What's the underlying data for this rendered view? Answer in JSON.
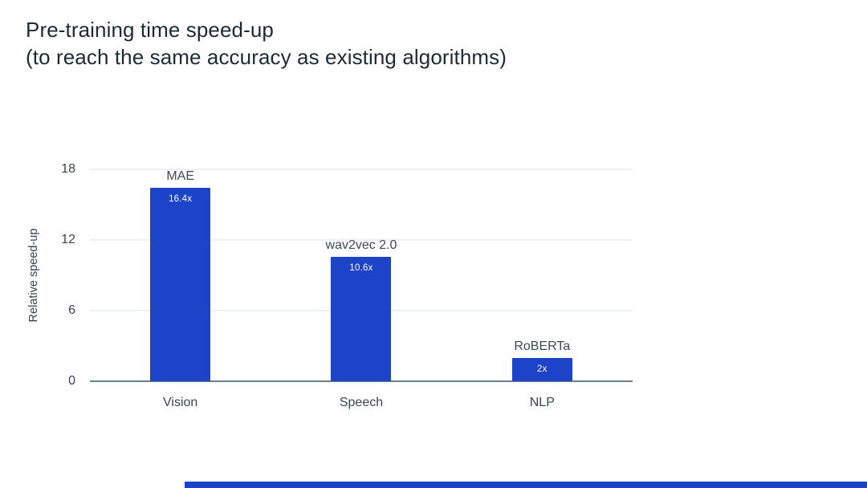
{
  "title": {
    "line1": "Pre-training time speed-up",
    "line2": "(to reach the same accuracy as existing algorithms)"
  },
  "colors": {
    "bar_blue": "#1c43c8",
    "title_text": "#1c2b33",
    "axis_text": "#37454f",
    "gridline": "#d9e1e6",
    "baseline": "#6f7f89"
  },
  "chart_data": {
    "type": "bar",
    "title": "Pre-training time speed-up (to reach the same accuracy as existing algorithms)",
    "categories": [
      "Vision",
      "Speech",
      "NLP"
    ],
    "values": [
      16.4,
      10.6,
      2
    ],
    "bar_labels": [
      "MAE",
      "wav2vec 2.0",
      "RoBERTa"
    ],
    "value_labels": [
      "16.4x",
      "10.6x",
      "2x"
    ],
    "xlabel": "",
    "ylabel": "Relative speed-up",
    "ylim": [
      0,
      18
    ],
    "yticks": [
      18,
      12,
      6,
      0
    ],
    "grid": true,
    "legend": "none",
    "bar_color": "#1c43c8"
  }
}
